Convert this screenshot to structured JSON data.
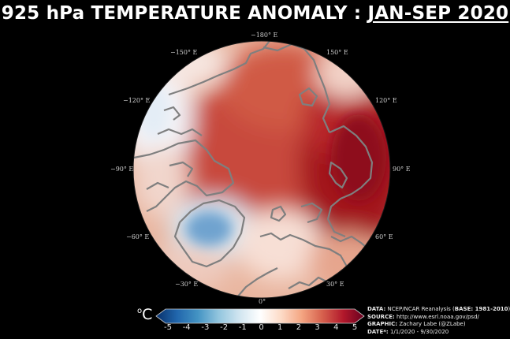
{
  "title": {
    "main": "925 hPa TEMPERATURE ANOMALY : ",
    "period": "JAN-SEP 2020"
  },
  "longitude_labels": [
    {
      "id": "lon-180",
      "text": "−180° E"
    },
    {
      "id": "lon-150e",
      "text": "150° E"
    },
    {
      "id": "lon-120e",
      "text": "120° E"
    },
    {
      "id": "lon-90e",
      "text": "90° E"
    },
    {
      "id": "lon-60e",
      "text": "60° E"
    },
    {
      "id": "lon-30e",
      "text": "30° E"
    },
    {
      "id": "lon-0",
      "text": "0°"
    },
    {
      "id": "lon-30w",
      "text": "−30° E"
    },
    {
      "id": "lon-60w",
      "text": "−60° E"
    },
    {
      "id": "lon-90w",
      "text": "−90° E"
    },
    {
      "id": "lon-120w",
      "text": "−120° E"
    },
    {
      "id": "lon-150w",
      "text": "−150° E"
    }
  ],
  "colorbar": {
    "unit": "C",
    "unit_degree": "o",
    "ticks": [
      "-5",
      "-4",
      "-3",
      "-2",
      "-1",
      "0",
      "1",
      "2",
      "3",
      "4",
      "5"
    ],
    "min": -5,
    "max": 5,
    "colors": [
      "#08306b",
      "#2166ac",
      "#4393c3",
      "#92c5de",
      "#d1e5f0",
      "#ffffff",
      "#fddbc7",
      "#f4a582",
      "#d6604d",
      "#b2182b",
      "#67001f"
    ]
  },
  "credits": {
    "data_label": "DATA:",
    "data_value": "NCEP/NCAR Reanalysis (",
    "base_label": "BASE: 1981-2010",
    "data_close": ")",
    "source_label": "SOURCE:",
    "source_value": "http://www.esrl.noaa.gov/psd/",
    "graphic_label": "GRAPHIC:",
    "graphic_value": "Zachary Labe (@ZLabe)",
    "date_label": "DATE*:",
    "date_value": "1/1/2020 - 9/30/2020"
  }
}
